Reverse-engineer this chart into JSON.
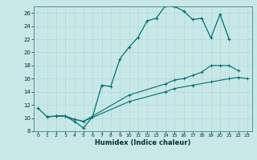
{
  "title": "",
  "xlabel": "Humidex (Indice chaleur)",
  "bg_color": "#c8e8e8",
  "grid_color": "#b0d8d8",
  "line_color": "#007070",
  "xlim": [
    -0.5,
    23.5
  ],
  "ylim": [
    8,
    27
  ],
  "xticks": [
    0,
    1,
    2,
    3,
    4,
    5,
    6,
    7,
    8,
    9,
    10,
    11,
    12,
    13,
    14,
    15,
    16,
    17,
    18,
    19,
    20,
    21,
    22,
    23
  ],
  "yticks": [
    8,
    10,
    12,
    14,
    16,
    18,
    20,
    22,
    24,
    26
  ],
  "line1_x": [
    0,
    1,
    2,
    3,
    4,
    5,
    6,
    7,
    8,
    9,
    10,
    11,
    12,
    13,
    14,
    15,
    16,
    17,
    18,
    19,
    20,
    21
  ],
  "line1_y": [
    11.5,
    10.2,
    10.3,
    10.3,
    9.5,
    8.5,
    10.2,
    15.0,
    14.8,
    19.0,
    20.8,
    22.3,
    24.8,
    25.2,
    27.1,
    27.0,
    26.3,
    25.0,
    25.2,
    22.2,
    25.8,
    22.0
  ],
  "line2_x": [
    1,
    2,
    3,
    4,
    5,
    10,
    14,
    15,
    16,
    17,
    18,
    19,
    20,
    21,
    22
  ],
  "line2_y": [
    10.2,
    10.3,
    10.3,
    9.8,
    9.5,
    13.5,
    15.2,
    15.8,
    16.0,
    16.5,
    17.0,
    18.0,
    18.0,
    18.0,
    17.2
  ],
  "line3_x": [
    2,
    3,
    4,
    5,
    10,
    14,
    15,
    17,
    19,
    21,
    22,
    23
  ],
  "line3_y": [
    10.3,
    10.3,
    9.8,
    9.5,
    12.5,
    14.0,
    14.5,
    15.0,
    15.5,
    16.0,
    16.2,
    16.0
  ]
}
